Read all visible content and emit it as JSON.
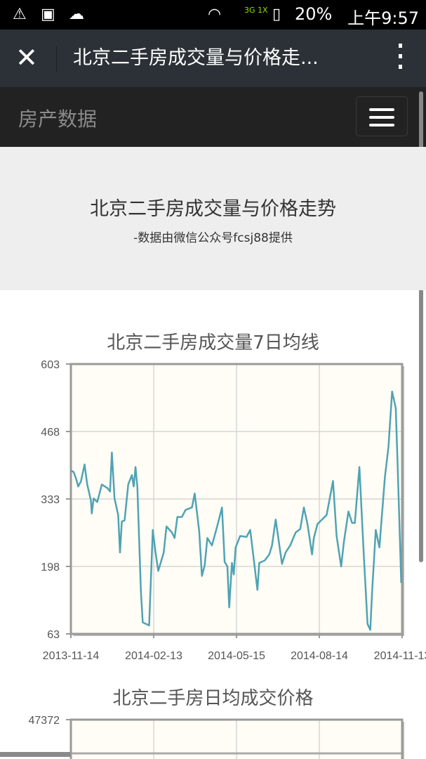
{
  "status_bar": {
    "battery": "20%",
    "time": "上午9:57",
    "network": "3G 1X",
    "icons": [
      "warning-icon",
      "image-icon",
      "cloud-icon",
      "wifi-icon",
      "signal-icon",
      "sim-icon",
      "battery-icon"
    ]
  },
  "nav": {
    "title": "北京二手房成交量与价格走...",
    "close_icon": "close-icon",
    "more_icon": "more-vertical-icon"
  },
  "site_header": {
    "brand": "房产数据",
    "menu_icon": "hamburger-icon"
  },
  "hero": {
    "title": "北京二手房成交量与价格走势",
    "subtitle": "-数据由微信公众号fcsj88提供"
  },
  "chart_data": [
    {
      "type": "line",
      "title": "北京二手房成交量7日均线",
      "ylim": [
        63,
        603
      ],
      "yticks": [
        "603",
        "468",
        "333",
        "198",
        "63"
      ],
      "xticks": [
        "2013-11-14",
        "2014-02-13",
        "2014-05-15",
        "2014-08-14",
        "2014-11-13"
      ],
      "xlim": [
        "2013-11-14",
        "2014-11-13"
      ],
      "grid": true,
      "line_color": "#4fa3b4",
      "x": [
        "2013-11-14",
        "2013-11-17",
        "2013-11-20",
        "2013-11-22",
        "2013-11-25",
        "2013-11-29",
        "2013-12-02",
        "2013-12-06",
        "2013-12-07",
        "2013-12-09",
        "2013-12-13",
        "2013-12-18",
        "2013-12-24",
        "2013-12-27",
        "2013-12-29",
        "2014-01-01",
        "2014-01-05",
        "2014-01-07",
        "2014-01-09",
        "2014-01-12",
        "2014-01-16",
        "2014-01-20",
        "2014-01-22",
        "2014-01-24",
        "2014-01-26",
        "2014-01-30",
        "2014-02-01",
        "2014-02-08",
        "2014-02-12",
        "2014-02-15",
        "2014-02-18",
        "2014-02-24",
        "2014-02-27",
        "2014-03-05",
        "2014-03-08",
        "2014-03-11",
        "2014-03-16",
        "2014-03-20",
        "2014-03-27",
        "2014-03-30",
        "2014-04-04",
        "2014-04-07",
        "2014-04-10",
        "2014-04-13",
        "2014-04-18",
        "2014-04-24",
        "2014-04-29",
        "2014-05-02",
        "2014-05-05",
        "2014-05-07",
        "2014-05-10",
        "2014-05-12",
        "2014-05-14",
        "2014-05-19",
        "2014-05-26",
        "2014-05-30",
        "2014-06-03",
        "2014-06-07",
        "2014-06-09",
        "2014-06-15",
        "2014-06-20",
        "2014-06-23",
        "2014-06-27",
        "2014-07-04",
        "2014-07-08",
        "2014-07-13",
        "2014-07-19",
        "2014-07-24",
        "2014-07-28",
        "2014-08-01",
        "2014-08-06",
        "2014-08-08",
        "2014-08-12",
        "2014-08-22",
        "2014-08-29",
        "2014-09-02",
        "2014-09-07",
        "2014-09-10",
        "2014-09-15",
        "2014-09-19",
        "2014-09-22",
        "2014-09-27",
        "2014-10-02",
        "2014-10-06",
        "2014-10-09",
        "2014-10-11",
        "2014-10-15",
        "2014-10-19",
        "2014-10-25",
        "2014-10-29",
        "2014-11-02",
        "2014-11-06",
        "2014-11-08",
        "2014-11-12"
      ],
      "y": [
        390,
        387,
        372,
        358,
        368,
        402,
        362,
        330,
        304,
        334,
        327,
        362,
        355,
        348,
        426,
        334,
        301,
        226,
        288,
        290,
        362,
        381,
        358,
        397,
        358,
        147,
        86,
        80,
        271,
        226,
        189,
        226,
        278,
        266,
        255,
        297,
        297,
        311,
        316,
        344,
        269,
        179,
        200,
        255,
        240,
        280,
        316,
        207,
        198,
        116,
        205,
        182,
        236,
        259,
        257,
        271,
        212,
        151,
        205,
        210,
        222,
        240,
        292,
        203,
        226,
        240,
        266,
        273,
        316,
        283,
        222,
        255,
        283,
        301,
        369,
        259,
        198,
        247,
        308,
        285,
        285,
        397,
        217,
        83,
        71,
        147,
        271,
        236,
        376,
        437,
        548,
        515,
        405,
        165
      ]
    },
    {
      "type": "line",
      "title": "北京二手房日均成交价格",
      "yticks": [
        "47372"
      ],
      "grid": true
    }
  ]
}
